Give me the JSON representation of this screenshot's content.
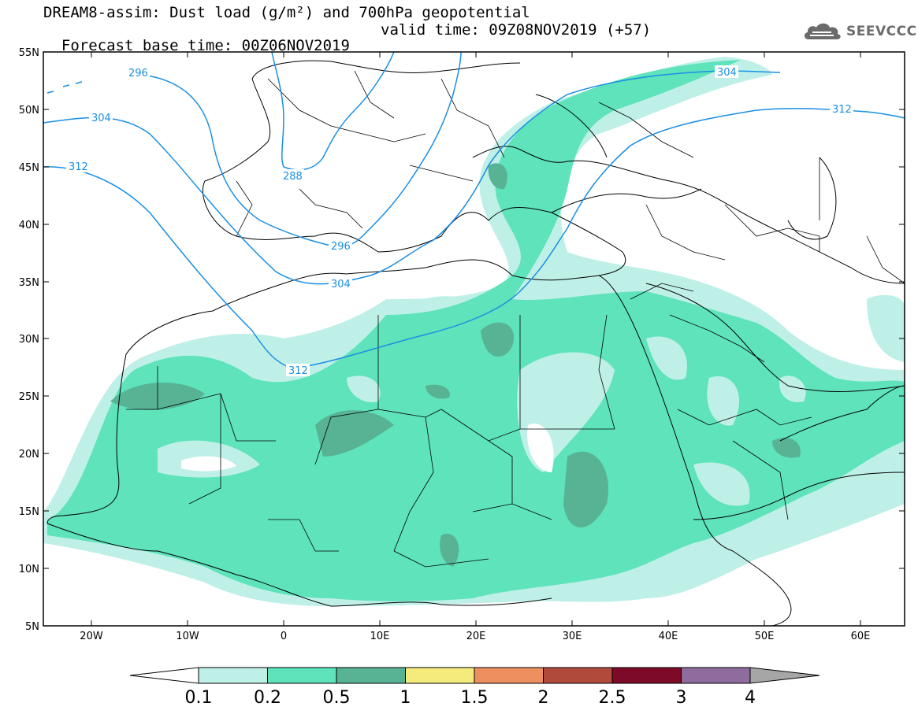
{
  "header": {
    "line1": "DREAM8-assim: Dust load (g/m²) and 700hPa geopotential",
    "base_time": "Forecast base time: 00Z06NOV2019",
    "valid_time": "valid time: 09Z08NOV2019 (+57)"
  },
  "logo": {
    "icon": "cloud-icon",
    "text": "SEEVCCC"
  },
  "map": {
    "lat_labels": [
      "55N",
      "50N",
      "45N",
      "40N",
      "35N",
      "30N",
      "25N",
      "20N",
      "15N",
      "10N",
      "5N"
    ],
    "lon_labels": [
      "20W",
      "10W",
      "0",
      "10E",
      "20E",
      "30E",
      "40E",
      "50E",
      "60E"
    ],
    "contour_labels": [
      "296",
      "304",
      "312",
      "288",
      "296",
      "304",
      "312",
      "304",
      "312"
    ],
    "contour_color": "#1a8fe3"
  },
  "legend": {
    "labels": [
      "0.1",
      "0.2",
      "0.5",
      "1",
      "1.5",
      "2",
      "2.5",
      "3",
      "4"
    ],
    "colors": [
      "#ffffff",
      "#bff0e8",
      "#5ee3bb",
      "#57b394",
      "#f5eb7d",
      "#ee8f5f",
      "#b04a3b",
      "#7d0a27",
      "#8e6c9e",
      "#a6a6a6"
    ]
  }
}
